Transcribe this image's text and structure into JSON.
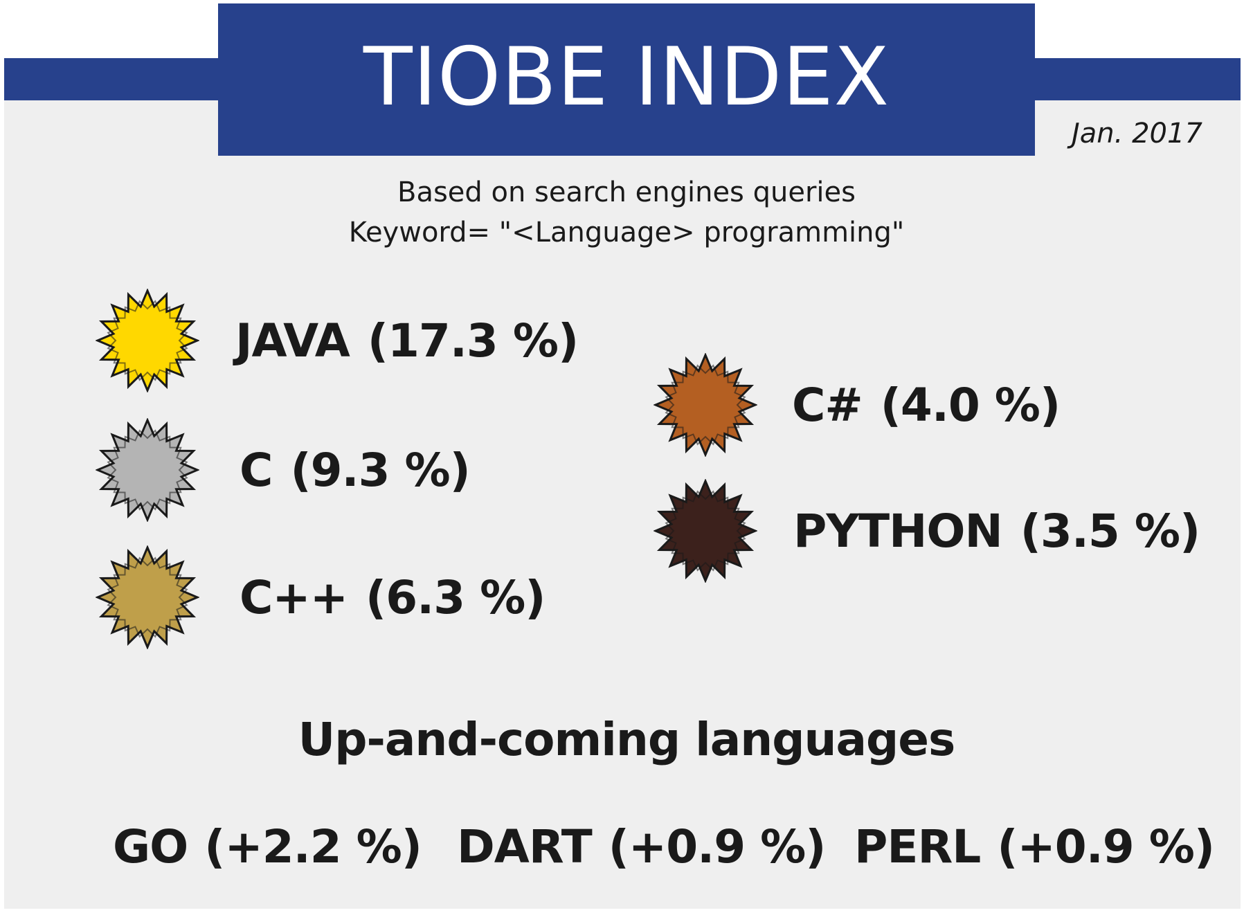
{
  "header": {
    "title": "TIOBE INDEX",
    "date": "Jan. 2017",
    "band_color": "#27418c"
  },
  "subtitle": {
    "line1": "Based on search engines queries",
    "line2": "Keyword= \"<Language> programming\""
  },
  "top_languages": [
    {
      "name": "JAVA",
      "share": "(17.3 %)",
      "medal_color": "#ffd800",
      "icon": "gold-star-icon"
    },
    {
      "name": "C",
      "share": "(9.3 %)",
      "medal_color": "#b4b4b4",
      "icon": "silver-star-icon"
    },
    {
      "name": "C++",
      "share": "(6.3 %)",
      "medal_color": "#bf9f4a",
      "icon": "bronze-star-icon"
    },
    {
      "name": "C#",
      "share": "(4.0 %)",
      "medal_color": "#b45f22",
      "icon": "copper-star-icon"
    },
    {
      "name": "PYTHON",
      "share": "(3.5 %)",
      "medal_color": "#3c211c",
      "icon": "dark-star-icon"
    }
  ],
  "up_and_coming": {
    "title": "Up-and-coming languages",
    "items": [
      {
        "name": "GO",
        "change": "(+2.2 %)"
      },
      {
        "name": "DART",
        "change": "(+0.9 %)"
      },
      {
        "name": "PERL",
        "change": "(+0.9 %)"
      }
    ]
  }
}
